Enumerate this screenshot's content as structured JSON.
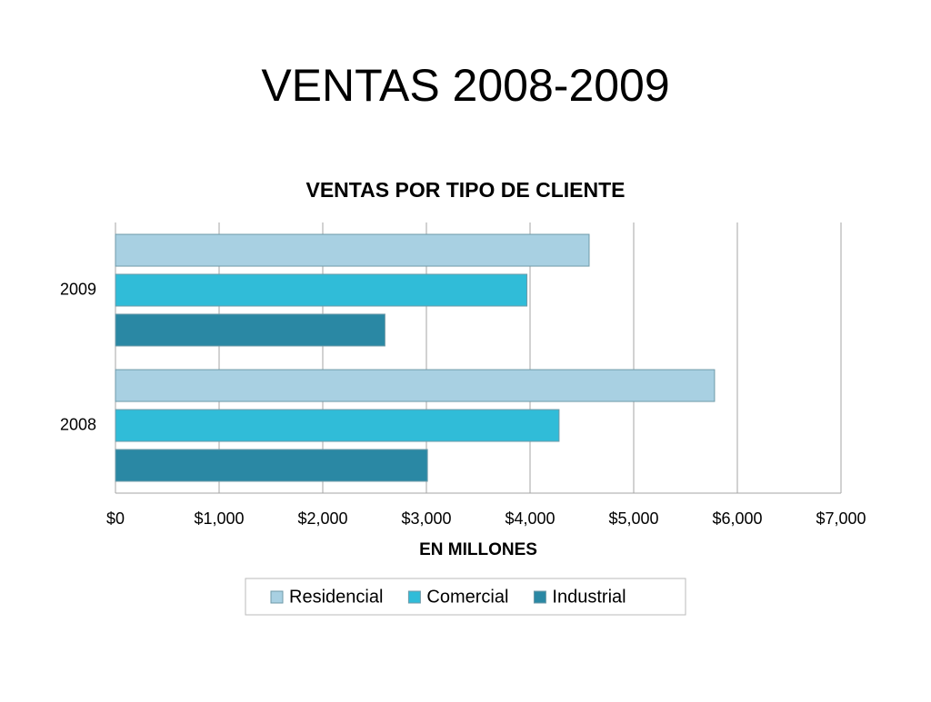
{
  "title": "VENTAS 2008-2009",
  "chart_data": {
    "type": "hbar",
    "title": "VENTAS POR TIPO DE CLIENTE",
    "x_label": "EN MILLONES",
    "categories": [
      "2008",
      "2009"
    ],
    "series": [
      {
        "name": "Residencial",
        "color": "#a8d0e2",
        "values": [
          5780,
          4570
        ]
      },
      {
        "name": "Comercial",
        "color": "#30bcd8",
        "values": [
          4280,
          3970
        ]
      },
      {
        "name": "Industrial",
        "color": "#2a88a4",
        "values": [
          3010,
          2600
        ]
      }
    ],
    "xlim": [
      0,
      7000
    ],
    "xticks": [
      {
        "value": 0,
        "label": "$0"
      },
      {
        "value": 1000,
        "label": "$1,000"
      },
      {
        "value": 2000,
        "label": "$2,000"
      },
      {
        "value": 3000,
        "label": "$3,000"
      },
      {
        "value": 4000,
        "label": "$4,000"
      },
      {
        "value": 5000,
        "label": "$5,000"
      },
      {
        "value": 6000,
        "label": "$6,000"
      },
      {
        "value": 7000,
        "label": "$7,000"
      }
    ],
    "grid": true,
    "legend": "bottom"
  }
}
